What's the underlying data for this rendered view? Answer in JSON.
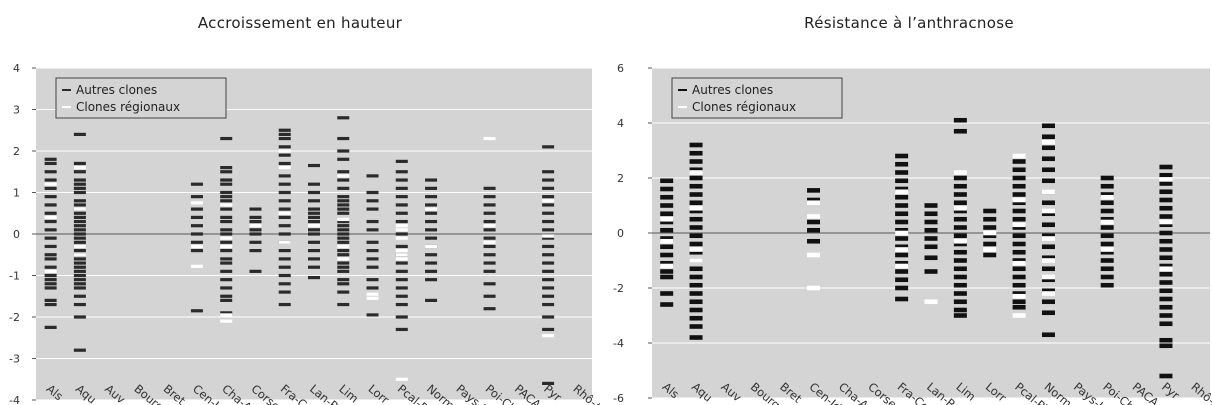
{
  "chart_data": [
    {
      "type": "strip",
      "title": "Accroissement en hauteur",
      "ylim": [
        -4,
        4
      ],
      "yticks": [
        4,
        3,
        2,
        1,
        0,
        -1,
        -2,
        -3,
        -4
      ],
      "grid": true,
      "legend": {
        "placement": "top-left",
        "entries": [
          "Autres clones",
          "Clones régionaux"
        ]
      },
      "series_colors": {
        "autres": "#2b2b2b",
        "regionaux": "#ffffff"
      },
      "background_color": "#d4d4d4",
      "categories": [
        "Als",
        "Aqu",
        "Auv",
        "Bourg",
        "Bret",
        "Cen-IdF",
        "Cha-Ard",
        "Corse",
        "Fra-Com",
        "Lan-Rou",
        "Lim",
        "Lorr",
        "Pcal-Pic",
        "Norm",
        "Pays-Loi",
        "Poi-Cha",
        "PACA",
        "Pyr",
        "Rhô-Alp"
      ],
      "series": [
        {
          "name": "Autres clones",
          "values": [
            [
              1.8,
              1.7,
              1.5,
              1.3,
              1.1,
              0.9,
              0.7,
              0.5,
              0.3,
              0.1,
              -0.1,
              -0.3,
              -0.5,
              -0.6,
              -0.8,
              -1.0,
              -1.1,
              -1.2,
              -1.3,
              -1.6,
              -1.7,
              -2.25
            ],
            [
              2.4,
              1.7,
              1.5,
              1.3,
              1.2,
              1.1,
              1.0,
              0.8,
              0.7,
              0.6,
              0.5,
              0.4,
              0.3,
              0.2,
              0.1,
              0.0,
              -0.1,
              -0.2,
              -0.3,
              -0.4,
              -0.5,
              -0.6,
              -0.7,
              -0.8,
              -0.9,
              -1.0,
              -1.1,
              -1.2,
              -1.3,
              -1.5,
              -1.7,
              -2.0,
              -2.8
            ],
            [],
            [],
            [],
            [
              1.2,
              0.9,
              0.6,
              0.4,
              0.2,
              0.0,
              -0.2,
              -0.4,
              -1.85
            ],
            [
              2.3,
              1.6,
              1.5,
              1.3,
              1.2,
              1.0,
              0.9,
              0.8,
              0.6,
              0.4,
              0.3,
              0.1,
              0.0,
              -0.2,
              -0.4,
              -0.6,
              -0.7,
              -0.9,
              -1.1,
              -1.3,
              -1.5,
              -1.6,
              -1.9
            ],
            [
              0.6,
              0.4,
              0.3,
              0.1,
              0.0,
              -0.2,
              -0.4,
              -0.9
            ],
            [
              2.5,
              2.4,
              2.3,
              2.1,
              1.9,
              1.7,
              1.4,
              1.2,
              1.0,
              0.8,
              0.6,
              0.4,
              0.2,
              0.0,
              -0.2,
              -0.4,
              -0.6,
              -0.8,
              -1.0,
              -1.2,
              -1.4,
              -1.7
            ],
            [
              1.65,
              1.2,
              1.0,
              0.8,
              0.6,
              0.5,
              0.4,
              0.3,
              0.1,
              0.0,
              -0.2,
              -0.4,
              -0.6,
              -0.8,
              -1.05
            ],
            [
              2.8,
              2.3,
              2.0,
              1.8,
              1.5,
              1.3,
              1.1,
              0.9,
              0.8,
              0.7,
              0.6,
              0.5,
              0.3,
              0.2,
              0.1,
              0.0,
              -0.1,
              -0.2,
              -0.4,
              -0.5,
              -0.7,
              -0.8,
              -0.9,
              -1.1,
              -1.2,
              -1.4,
              -1.7
            ],
            [
              1.4,
              1.0,
              0.8,
              0.6,
              0.3,
              0.1,
              -0.2,
              -0.4,
              -0.6,
              -0.8,
              -1.1,
              -1.3,
              -1.95
            ],
            [
              1.75,
              1.5,
              1.3,
              1.1,
              0.9,
              0.7,
              0.5,
              0.3,
              0.0,
              -0.3,
              -0.5,
              -0.7,
              -0.9,
              -1.1,
              -1.3,
              -1.5,
              -1.7,
              -2.0,
              -2.3
            ],
            [
              1.3,
              1.1,
              0.9,
              0.7,
              0.5,
              0.3,
              0.1,
              -0.1,
              -0.3,
              -0.5,
              -0.7,
              -0.9,
              -1.1,
              -1.6
            ],
            [],
            [
              1.1,
              0.9,
              0.7,
              0.5,
              0.3,
              0.1,
              -0.1,
              -0.3,
              -0.5,
              -0.7,
              -0.9,
              -1.2,
              -1.5,
              -1.8
            ],
            [],
            [
              2.1,
              1.5,
              1.3,
              1.1,
              0.9,
              0.7,
              0.5,
              0.3,
              0.1,
              -0.1,
              -0.3,
              -0.5,
              -0.7,
              -0.9,
              -1.1,
              -1.3,
              -1.5,
              -1.7,
              -2.0,
              -2.3,
              -3.6
            ],
            []
          ]
        },
        {
          "name": "Clones régionaux",
          "values": [
            [
              1.2,
              0.4,
              -0.9
            ],
            [
              1.6,
              0.6,
              -0.3,
              -0.5
            ],
            [],
            [],
            [],
            [
              0.75,
              -0.3,
              -0.78
            ],
            [
              0.7,
              -0.1,
              -0.3,
              -1.95,
              -2.1
            ],
            [
              0.2
            ],
            [
              2.0,
              1.6,
              0.5,
              -0.2
            ],
            [
              0.2
            ],
            [
              1.4,
              0.35,
              -0.3,
              -0.6
            ],
            [
              -1.45,
              -1.55
            ],
            [
              0.2,
              0.1,
              -0.1,
              -0.4,
              -0.5,
              -0.6,
              -3.5
            ],
            [
              0.6,
              -0.3
            ],
            [],
            [
              2.3,
              0.2,
              -0.2
            ],
            [],
            [
              0.8,
              -0.05,
              -2.45
            ],
            []
          ]
        }
      ]
    },
    {
      "type": "strip",
      "title": "Résistance à l’anthracnose",
      "ylim": [
        -6,
        6
      ],
      "yticks": [
        6,
        4,
        2,
        0,
        -2,
        -4,
        -6
      ],
      "grid": true,
      "legend": {
        "placement": "top-left",
        "entries": [
          "Autres clones",
          "Clones régionaux"
        ]
      },
      "series_colors": {
        "autres": "#111111",
        "regionaux": "#ffffff"
      },
      "background_color": "#d4d4d4",
      "categories": [
        "Als",
        "Aqu",
        "Auv",
        "Bourg",
        "Bret",
        "Cen-IdF",
        "Cha-Ard",
        "Corse",
        "Fra-Com",
        "Lan-Rou",
        "Lim",
        "Lorr",
        "Pcal-Pic",
        "Norm",
        "Pays-Loi",
        "Poi-Cha",
        "PACA",
        "Pyr",
        "Rhô-Alp"
      ],
      "series": [
        {
          "name": "Autres clones",
          "values": [
            [
              1.9,
              1.6,
              1.3,
              1.0,
              0.7,
              0.4,
              0.1,
              -0.2,
              -0.5,
              -0.8,
              -1.1,
              -1.4,
              -1.6,
              -2.2,
              -2.6
            ],
            [
              3.2,
              2.9,
              2.6,
              2.3,
              2.0,
              1.7,
              1.4,
              1.1,
              0.8,
              0.5,
              0.2,
              -0.1,
              -0.4,
              -0.7,
              -1.0,
              -1.3,
              -1.6,
              -1.9,
              -2.2,
              -2.5,
              -2.8,
              -3.1,
              -3.4,
              -3.8
            ],
            [],
            [],
            [],
            [
              1.55,
              1.2,
              0.4,
              0.1,
              -0.3
            ],
            [],
            [],
            [
              2.8,
              2.5,
              2.2,
              1.9,
              1.6,
              1.3,
              1.0,
              0.7,
              0.4,
              0.1,
              -0.2,
              -0.5,
              -0.8,
              -1.1,
              -1.4,
              -1.7,
              -2.0,
              -2.4
            ],
            [
              1.0,
              0.7,
              0.4,
              0.1,
              -0.2,
              -0.5,
              -0.9,
              -1.4
            ],
            [
              4.1,
              3.7,
              2.0,
              1.7,
              1.4,
              1.1,
              0.8,
              0.5,
              0.2,
              -0.1,
              -0.4,
              -0.7,
              -1.0,
              -1.3,
              -1.6,
              -1.9,
              -2.2,
              -2.5,
              -2.8,
              -3.0
            ],
            [
              0.8,
              0.5,
              0.2,
              -0.1,
              -0.4,
              -0.8
            ],
            [
              2.6,
              2.3,
              2.0,
              1.7,
              1.4,
              1.1,
              0.8,
              0.5,
              0.2,
              -0.1,
              -0.4,
              -0.7,
              -1.0,
              -1.3,
              -1.6,
              -1.9,
              -2.2,
              -2.5,
              -2.7
            ],
            [
              3.9,
              3.5,
              3.1,
              2.7,
              2.3,
              1.9,
              1.5,
              1.1,
              0.7,
              0.3,
              -0.1,
              -0.5,
              -0.9,
              -1.3,
              -1.7,
              -2.1,
              -2.5,
              -2.9,
              -3.7
            ],
            [],
            [
              2.0,
              1.7,
              1.4,
              1.1,
              0.8,
              0.5,
              0.2,
              -0.1,
              -0.4,
              -0.7,
              -1.0,
              -1.3,
              -1.6,
              -1.9
            ],
            [],
            [
              2.4,
              2.1,
              1.8,
              1.5,
              1.2,
              0.9,
              0.6,
              0.3,
              0.0,
              -0.3,
              -0.6,
              -0.9,
              -1.2,
              -1.5,
              -1.8,
              -2.1,
              -2.4,
              -2.7,
              -3.0,
              -3.3,
              -3.9,
              -4.1,
              -5.2
            ],
            []
          ]
        },
        {
          "name": "Clones régionaux",
          "values": [
            [
              0.5,
              -0.3,
              -1.2
            ],
            [
              2.2,
              0.9,
              -0.6,
              -1.0
            ],
            [],
            [],
            [],
            [
              1.1,
              0.6,
              -0.8,
              -2.0
            ],
            [],
            [],
            [
              1.5,
              0.0,
              -0.6,
              -1.2
            ],
            [
              -2.5
            ],
            [
              2.2,
              0.9,
              -0.3
            ],
            [
              0.0,
              -0.6
            ],
            [
              2.8,
              1.2,
              0.3,
              -1.1,
              -2.3,
              -3.0
            ],
            [
              3.3,
              1.5,
              0.8,
              -0.2,
              -1.0,
              -1.6,
              -2.2
            ],
            [],
            [
              1.3,
              0.4,
              -0.6
            ],
            [],
            [
              1.95,
              0.4,
              -1.3
            ],
            []
          ]
        }
      ]
    }
  ]
}
